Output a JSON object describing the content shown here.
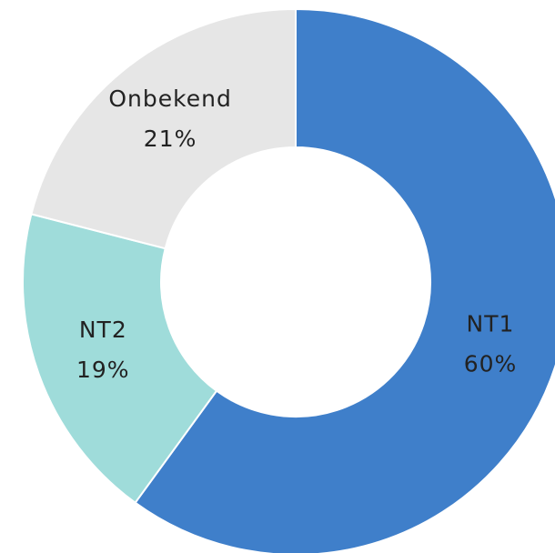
{
  "chart_data": {
    "type": "donut",
    "categories": [
      "NT1",
      "NT2",
      "Onbekend"
    ],
    "values": [
      60,
      19,
      21
    ],
    "value_labels": [
      "60%",
      "19%",
      "21%"
    ],
    "colors": [
      "#3f7fca",
      "#9fdcda",
      "#e6e6e6"
    ]
  }
}
